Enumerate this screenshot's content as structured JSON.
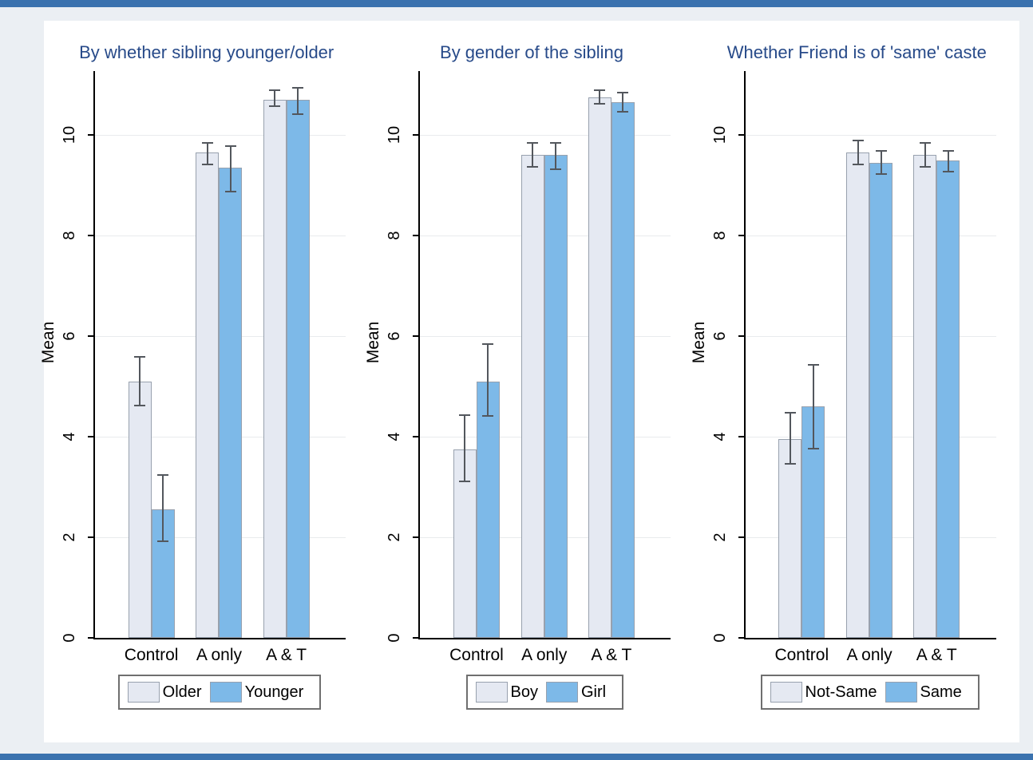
{
  "page": {
    "background": "#ebeff3",
    "surface_background": "#ffffff",
    "top_strip_color": "#3a72ae",
    "bottom_strip_color": "#3a72ae"
  },
  "styles": {
    "title_color": "#274a89",
    "axis_color": "#000000",
    "text_color": "#000000",
    "grid_color": "#e9ebed",
    "bar_border_color": "#98a1ae",
    "error_bar_color": "#53575d",
    "legend_border_color": "#6f6f6f",
    "series1_color": "#e5e9f2",
    "series2_color": "#7db9e8"
  },
  "chart_data": [
    {
      "type": "bar",
      "title": "By whether sibling younger/older",
      "ylabel": "Mean",
      "xlabel": "",
      "categories": [
        "Control",
        "A only",
        "A & T"
      ],
      "yticks": [
        0,
        2,
        4,
        6,
        8,
        10
      ],
      "ylim": [
        0,
        11.27
      ],
      "grid": true,
      "legend_position": "bottom",
      "series": [
        {
          "name": "Older",
          "color": "#e5e9f2",
          "values": [
            5.1,
            9.65,
            10.7
          ],
          "ci_low": [
            4.6,
            9.4,
            10.55
          ],
          "ci_high": [
            5.6,
            9.85,
            10.9
          ]
        },
        {
          "name": "Younger",
          "color": "#7db9e8",
          "values": [
            2.55,
            9.35,
            10.7
          ],
          "ci_low": [
            1.9,
            8.85,
            10.4
          ],
          "ci_high": [
            3.25,
            9.8,
            10.95
          ]
        }
      ]
    },
    {
      "type": "bar",
      "title": "By gender of the sibling",
      "ylabel": "Mean",
      "xlabel": "",
      "categories": [
        "Control",
        "A only",
        "A & T"
      ],
      "yticks": [
        0,
        2,
        4,
        6,
        8,
        10
      ],
      "ylim": [
        0,
        11.27
      ],
      "grid": true,
      "legend_position": "bottom",
      "series": [
        {
          "name": "Boy",
          "color": "#e5e9f2",
          "values": [
            3.75,
            9.6,
            10.75
          ],
          "ci_low": [
            3.1,
            9.35,
            10.6
          ],
          "ci_high": [
            4.45,
            9.85,
            10.9
          ]
        },
        {
          "name": "Girl",
          "color": "#7db9e8",
          "values": [
            5.1,
            9.6,
            10.65
          ],
          "ci_low": [
            4.4,
            9.3,
            10.45
          ],
          "ci_high": [
            5.85,
            9.85,
            10.85
          ]
        }
      ]
    },
    {
      "type": "bar",
      "title": "Whether Friend is of 'same' caste",
      "ylabel": "Mean",
      "xlabel": "",
      "categories": [
        "Control",
        "A only",
        "A & T"
      ],
      "yticks": [
        0,
        2,
        4,
        6,
        8,
        10
      ],
      "ylim": [
        0,
        11.27
      ],
      "grid": true,
      "legend_position": "bottom",
      "series": [
        {
          "name": "Not-Same",
          "color": "#e5e9f2",
          "values": [
            3.95,
            9.65,
            9.6
          ],
          "ci_low": [
            3.45,
            9.4,
            9.35
          ],
          "ci_high": [
            4.5,
            9.9,
            9.85
          ]
        },
        {
          "name": "Same",
          "color": "#7db9e8",
          "values": [
            4.6,
            9.45,
            9.5
          ],
          "ci_low": [
            3.75,
            9.2,
            9.25
          ],
          "ci_high": [
            5.45,
            9.7,
            9.7
          ]
        }
      ]
    }
  ]
}
